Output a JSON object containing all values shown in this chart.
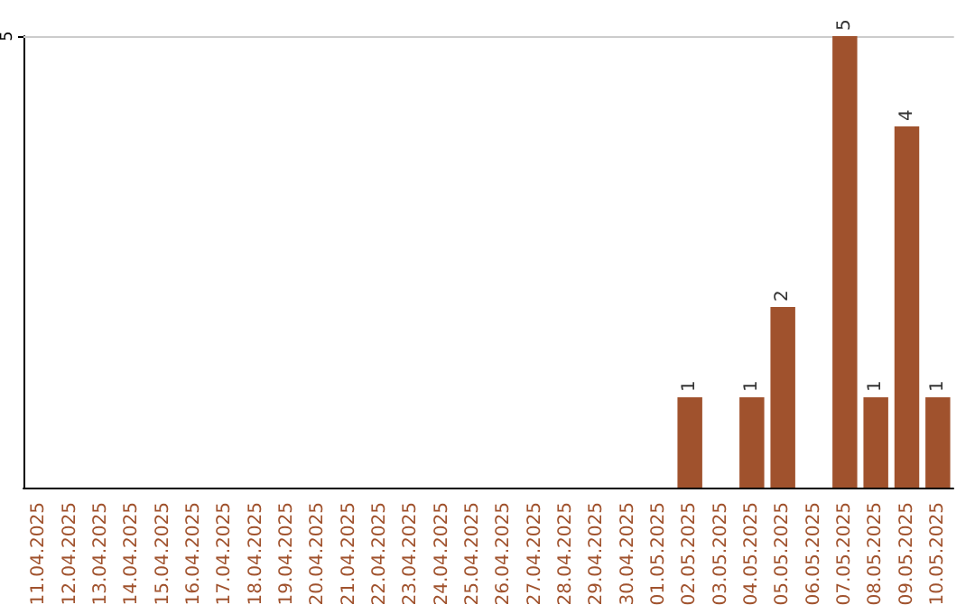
{
  "chart_data": {
    "type": "bar",
    "categories": [
      "11.04.2025",
      "12.04.2025",
      "13.04.2025",
      "14.04.2025",
      "15.04.2025",
      "16.04.2025",
      "17.04.2025",
      "18.04.2025",
      "19.04.2025",
      "20.04.2025",
      "21.04.2025",
      "22.04.2025",
      "23.04.2025",
      "24.04.2025",
      "25.04.2025",
      "26.04.2025",
      "27.04.2025",
      "28.04.2025",
      "29.04.2025",
      "30.04.2025",
      "01.05.2025",
      "02.05.2025",
      "03.05.2025",
      "04.05.2025",
      "05.05.2025",
      "06.05.2025",
      "07.05.2025",
      "08.05.2025",
      "09.05.2025",
      "10.05.2025"
    ],
    "values": [
      null,
      null,
      null,
      null,
      null,
      null,
      null,
      null,
      null,
      null,
      null,
      null,
      null,
      null,
      null,
      null,
      null,
      null,
      null,
      null,
      null,
      1,
      null,
      1,
      2,
      null,
      5,
      1,
      4,
      1
    ],
    "value_labels": [
      null,
      null,
      null,
      null,
      null,
      null,
      null,
      null,
      null,
      null,
      null,
      null,
      null,
      null,
      null,
      null,
      null,
      null,
      null,
      null,
      null,
      "1",
      null,
      "1",
      "2",
      null,
      "5",
      "1",
      "4",
      "1"
    ],
    "color": "#a0522d",
    "ylim": [
      0,
      5
    ],
    "yticks": [
      5
    ]
  }
}
